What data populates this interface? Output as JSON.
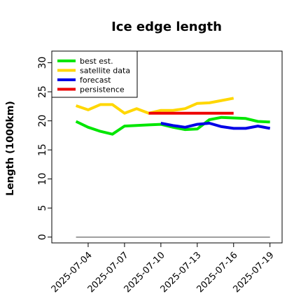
{
  "chart_data": {
    "type": "line",
    "title": "Ice edge length",
    "xlabel": "",
    "ylabel": "Length (1000km)",
    "ylim": [
      -1,
      32
    ],
    "yticks": [
      "0",
      "5",
      "10",
      "15",
      "20",
      "25",
      "30"
    ],
    "xticks": [
      {
        "label": "2025-07-04",
        "color": "#000000"
      },
      {
        "label": "2025-07-07",
        "color": "#000000"
      },
      {
        "label": "2025-07-10",
        "color": "#228B22"
      },
      {
        "label": "2025-07-13",
        "color": "#000000"
      },
      {
        "label": "2025-07-16",
        "color": "#000000"
      },
      {
        "label": "2025-07-19",
        "color": "#000000"
      }
    ],
    "xlim": [
      "2025-07-01",
      "2025-07-20"
    ],
    "legend_position": "top-left",
    "grid": false,
    "series": [
      {
        "name": "best est.",
        "color": "#00e600",
        "x": [
          "2025-07-03",
          "2025-07-04",
          "2025-07-05",
          "2025-07-06",
          "2025-07-07",
          "2025-07-08",
          "2025-07-09",
          "2025-07-10",
          "2025-07-11",
          "2025-07-12",
          "2025-07-13",
          "2025-07-14",
          "2025-07-15",
          "2025-07-16",
          "2025-07-17",
          "2025-07-18",
          "2025-07-19"
        ],
        "y": [
          19.9,
          18.9,
          18.2,
          17.7,
          19.1,
          19.2,
          19.3,
          19.4,
          18.9,
          18.5,
          18.6,
          20.2,
          20.6,
          20.5,
          20.4,
          19.9,
          19.8
        ]
      },
      {
        "name": "satellite data",
        "color": "#ffd700",
        "x": [
          "2025-07-03",
          "2025-07-04",
          "2025-07-05",
          "2025-07-06",
          "2025-07-07",
          "2025-07-08",
          "2025-07-09",
          "2025-07-10",
          "2025-07-11",
          "2025-07-12",
          "2025-07-13",
          "2025-07-14",
          "2025-07-15",
          "2025-07-16"
        ],
        "y": [
          22.6,
          21.9,
          22.8,
          22.8,
          21.3,
          22.1,
          21.3,
          21.8,
          21.8,
          22.1,
          23.0,
          23.1,
          23.5,
          23.9
        ]
      },
      {
        "name": "forecast",
        "color": "#0000e6",
        "x": [
          "2025-07-10",
          "2025-07-11",
          "2025-07-12",
          "2025-07-13",
          "2025-07-14",
          "2025-07-15",
          "2025-07-16",
          "2025-07-17",
          "2025-07-18",
          "2025-07-19"
        ],
        "y": [
          19.6,
          19.2,
          18.9,
          19.4,
          19.6,
          19.0,
          18.7,
          18.7,
          19.1,
          18.7
        ]
      },
      {
        "name": "persistence",
        "color": "#ee0000",
        "x": [
          "2025-07-09",
          "2025-07-16"
        ],
        "y": [
          21.3,
          21.3
        ]
      },
      {
        "name": "",
        "color": "#7f7f7f",
        "x": [
          "2025-07-03",
          "2025-07-19"
        ],
        "y": [
          0,
          0
        ]
      }
    ]
  }
}
